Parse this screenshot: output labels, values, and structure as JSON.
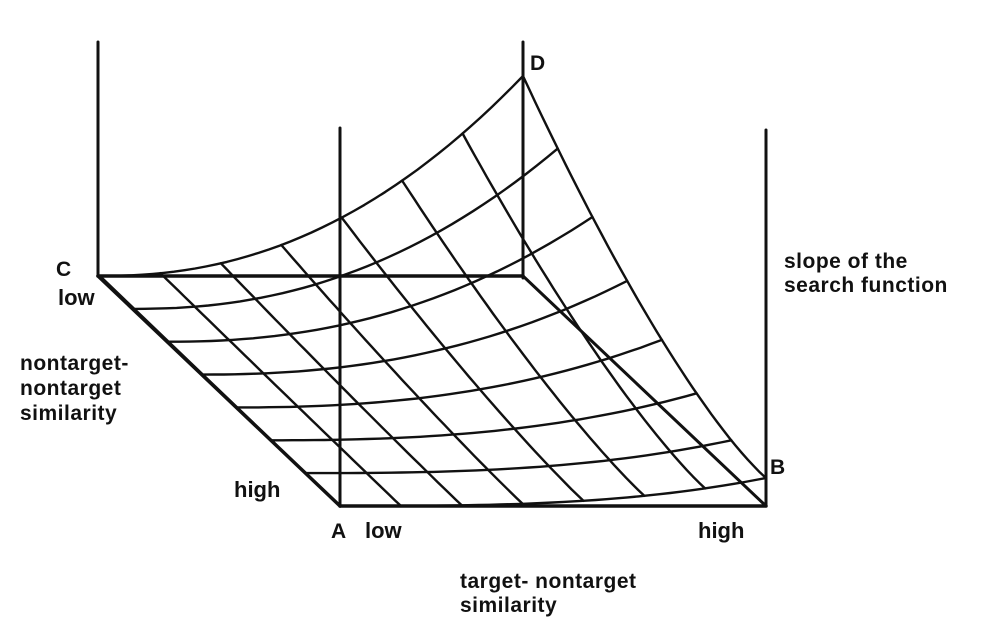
{
  "corners": {
    "a": "A",
    "b": "B",
    "c": "C",
    "d": "D"
  },
  "x_axis": {
    "label_lines": [
      "target- nontarget",
      "similarity"
    ],
    "low": "low",
    "high": "high"
  },
  "depth_axis": {
    "label_lines": [
      "nontarget-",
      "nontarget",
      "similarity"
    ],
    "low": "low",
    "high": "high"
  },
  "z_axis": {
    "label_lines": [
      "slope of the",
      "search function"
    ]
  },
  "colors": {
    "ink": "#111111",
    "background": "#ffffff"
  }
}
